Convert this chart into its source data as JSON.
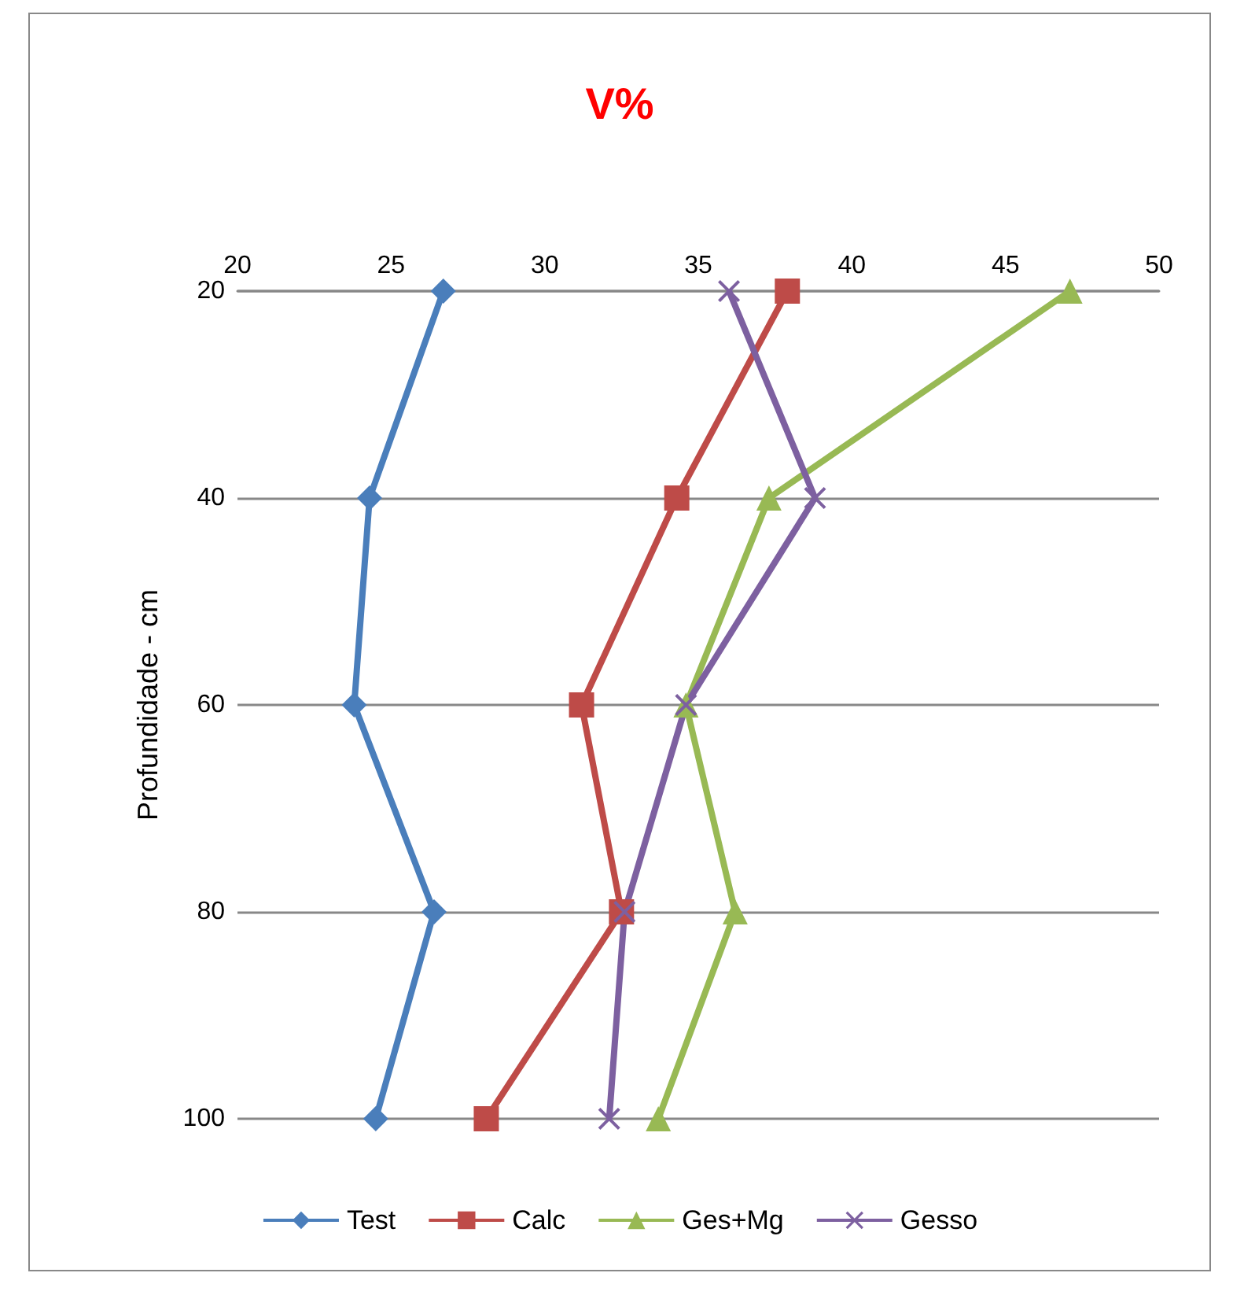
{
  "chart_data": {
    "type": "line",
    "title": "V%",
    "ylabel": "Profundidade - cm",
    "orientation": "horizontal",
    "categories": [
      "20",
      "40",
      "60",
      "80",
      "100"
    ],
    "xlim": [
      20,
      50
    ],
    "xticks": [
      20,
      25,
      30,
      35,
      40,
      45,
      50
    ],
    "grid": "y",
    "legend": "bottom",
    "line_style": "solid",
    "series": [
      {
        "name": "Test",
        "color": "#4a7ebb",
        "marker": "diamond",
        "values": [
          26.7,
          24.3,
          23.8,
          26.4,
          24.5
        ]
      },
      {
        "name": "Calc",
        "color": "#be4b48",
        "marker": "square",
        "values": [
          37.9,
          34.3,
          31.2,
          32.5,
          28.1
        ]
      },
      {
        "name": "Ges+Mg",
        "color": "#98b954",
        "marker": "triangle",
        "values": [
          47.1,
          37.3,
          34.6,
          36.2,
          33.7
        ]
      },
      {
        "name": "Gesso",
        "color": "#7d60a0",
        "marker": "cross",
        "values": [
          36.0,
          38.8,
          34.6,
          32.6,
          32.1
        ]
      }
    ]
  }
}
